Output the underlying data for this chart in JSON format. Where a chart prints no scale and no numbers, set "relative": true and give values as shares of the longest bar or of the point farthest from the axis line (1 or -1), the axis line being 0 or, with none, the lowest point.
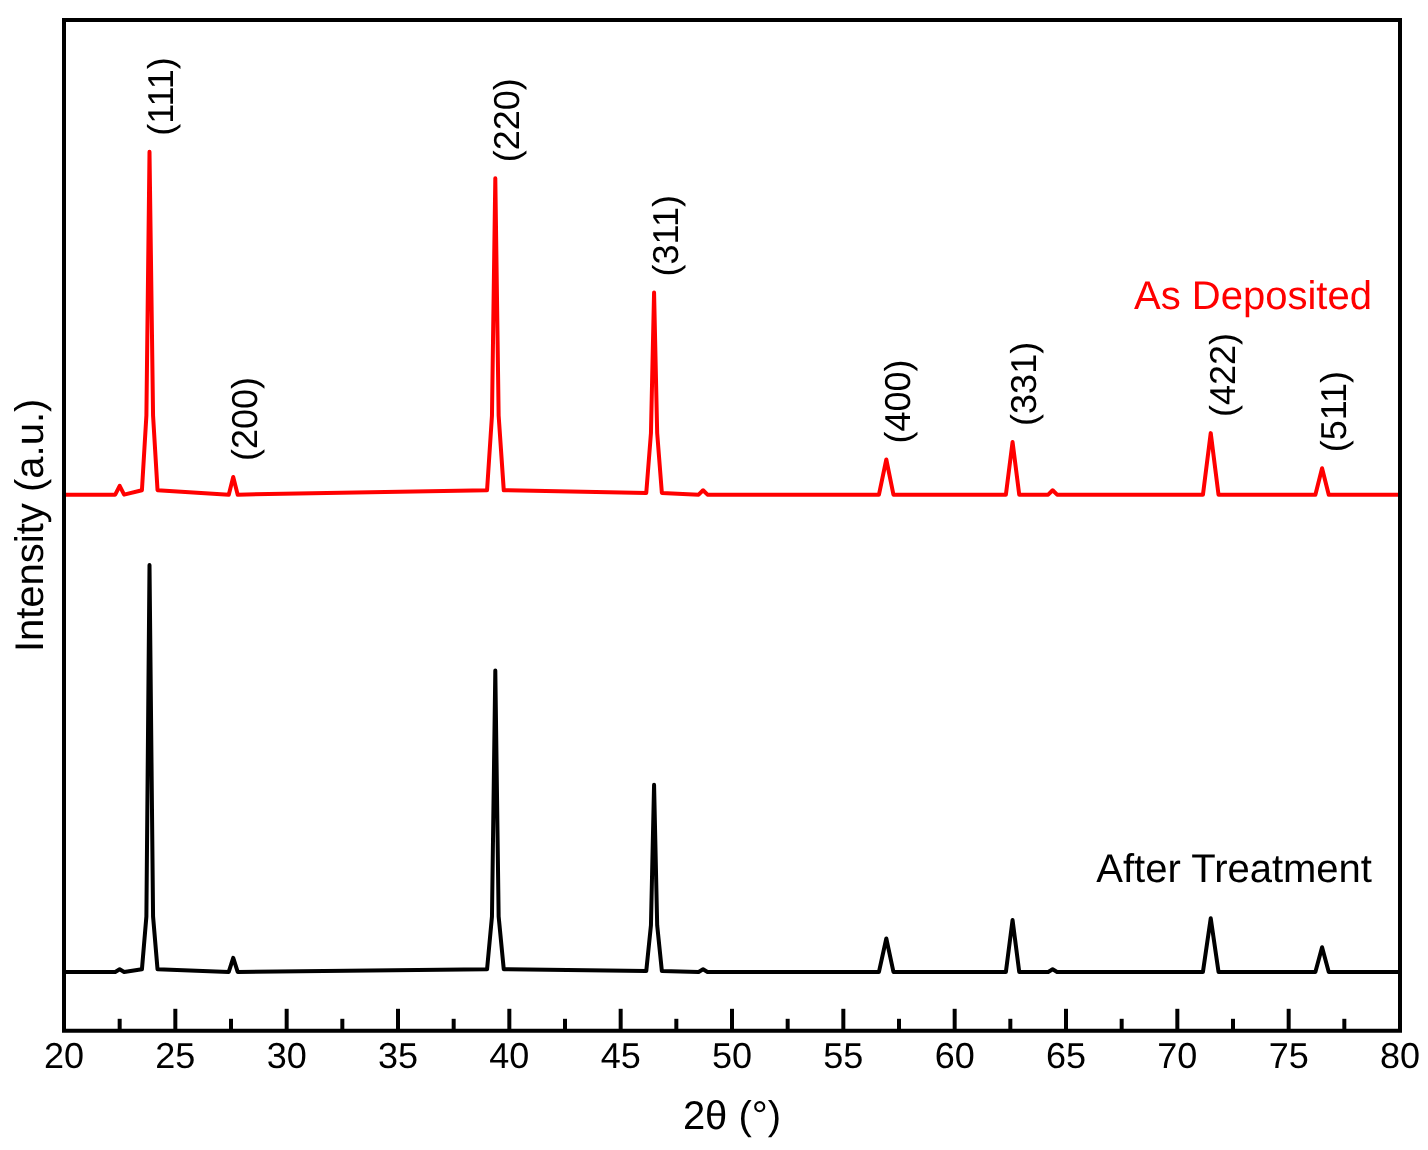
{
  "chart_data": {
    "type": "line",
    "xlabel": "2θ (°)",
    "ylabel": "Intensity (a.u.)",
    "relative": true,
    "x": [
      20,
      22.3,
      22.5,
      22.7,
      23.5,
      23.7,
      23.84,
      24.0,
      24.2,
      27.4,
      27.6,
      27.8,
      39.0,
      39.22,
      39.37,
      39.52,
      39.75,
      46.15,
      46.36,
      46.5,
      46.64,
      46.85,
      48.5,
      48.7,
      48.9,
      56.6,
      56.93,
      57.25,
      62.3,
      62.6,
      62.9,
      64.2,
      64.4,
      64.6,
      71.15,
      71.5,
      71.85,
      76.2,
      76.5,
      76.8,
      80
    ],
    "series": [
      {
        "name": "As Deposited",
        "color": "#ff0000",
        "values": [
          0.61,
          0.61,
          0.62,
          0.61,
          0.615,
          0.7,
          1.0,
          0.7,
          0.615,
          0.61,
          0.63,
          0.61,
          0.615,
          0.7,
          0.97,
          0.7,
          0.615,
          0.612,
          0.68,
          0.84,
          0.68,
          0.612,
          0.61,
          0.615,
          0.61,
          0.61,
          0.65,
          0.61,
          0.61,
          0.67,
          0.61,
          0.61,
          0.615,
          0.61,
          0.61,
          0.68,
          0.61,
          0.61,
          0.64,
          0.61,
          0.61
        ]
      },
      {
        "name": "After Treatment",
        "color": "#000000",
        "values": [
          0.067,
          0.067,
          0.07,
          0.067,
          0.07,
          0.13,
          0.53,
          0.13,
          0.07,
          0.067,
          0.083,
          0.067,
          0.07,
          0.13,
          0.41,
          0.13,
          0.07,
          0.068,
          0.12,
          0.28,
          0.12,
          0.068,
          0.067,
          0.07,
          0.067,
          0.067,
          0.105,
          0.067,
          0.067,
          0.126,
          0.067,
          0.067,
          0.07,
          0.067,
          0.067,
          0.128,
          0.067,
          0.067,
          0.095,
          0.067,
          0.067
        ]
      }
    ],
    "annotations": [
      {
        "text": "(111)",
        "x": 23.84,
        "y": 1.0
      },
      {
        "text": "(200)",
        "x": 27.6,
        "y": 0.63
      },
      {
        "text": "(220)",
        "x": 39.37,
        "y": 0.97
      },
      {
        "text": "(311)",
        "x": 46.5,
        "y": 0.84
      },
      {
        "text": "(400)",
        "x": 56.93,
        "y": 0.65
      },
      {
        "text": "(331)",
        "x": 62.6,
        "y": 0.67
      },
      {
        "text": "(422)",
        "x": 71.5,
        "y": 0.68
      },
      {
        "text": "(511)",
        "x": 76.5,
        "y": 0.64
      }
    ],
    "xlim": [
      20,
      80
    ],
    "xticks": [
      20,
      {
        "value": 22.5,
        "label": null
      },
      25,
      {
        "value": 27.5,
        "label": null
      },
      30,
      {
        "value": 32.5,
        "label": null
      },
      35,
      {
        "value": 37.5,
        "label": null
      },
      40,
      {
        "value": 42.5,
        "label": null
      },
      45,
      {
        "value": 47.5,
        "label": null
      },
      50,
      {
        "value": 52.5,
        "label": null
      },
      55,
      {
        "value": 57.5,
        "label": null
      },
      60,
      {
        "value": 62.5,
        "label": null
      },
      65,
      {
        "value": 67.5,
        "label": null
      },
      70,
      {
        "value": 72.5,
        "label": null
      },
      75,
      {
        "value": 77.5,
        "label": null
      },
      80
    ],
    "grid": false,
    "legend": false,
    "marker": "none",
    "line_style": "solid"
  }
}
